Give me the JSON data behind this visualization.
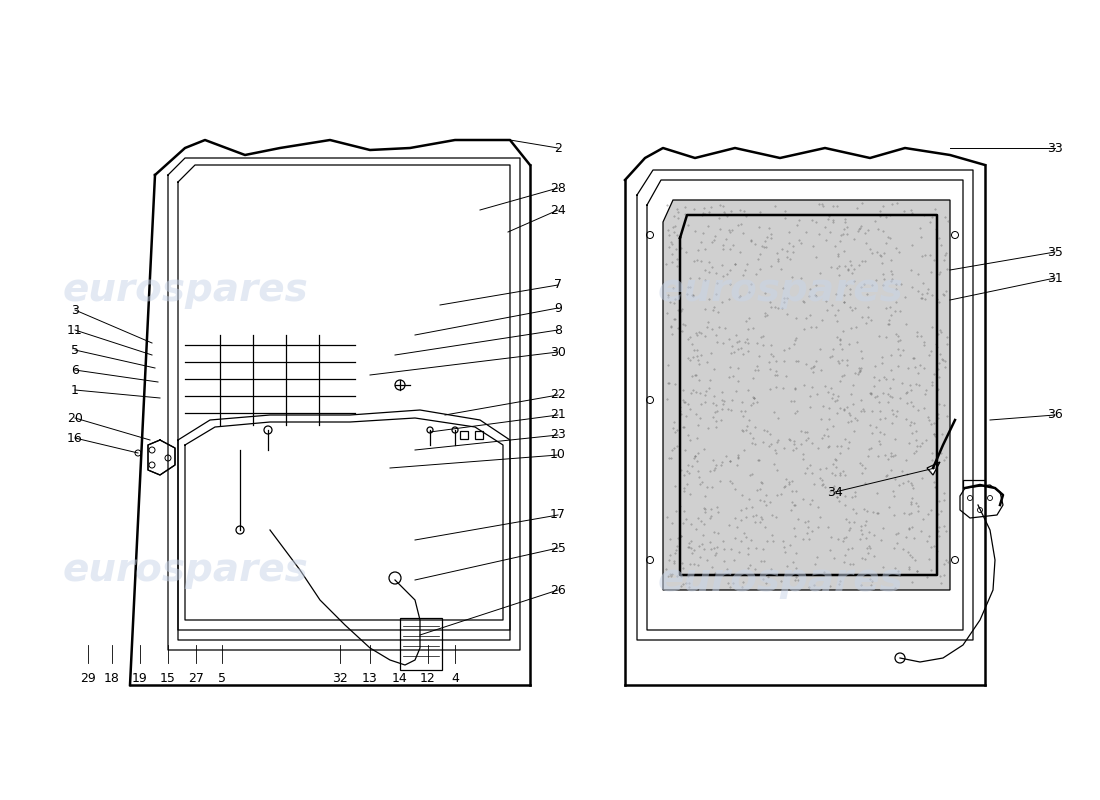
{
  "background_color": "#ffffff",
  "watermark_text": "eurospares",
  "watermark_color": "#c8d4e8",
  "line_color": "#000000",
  "label_color": "#000000",
  "lw_main": 1.8,
  "lw_thin": 0.9,
  "fs_label": 9
}
